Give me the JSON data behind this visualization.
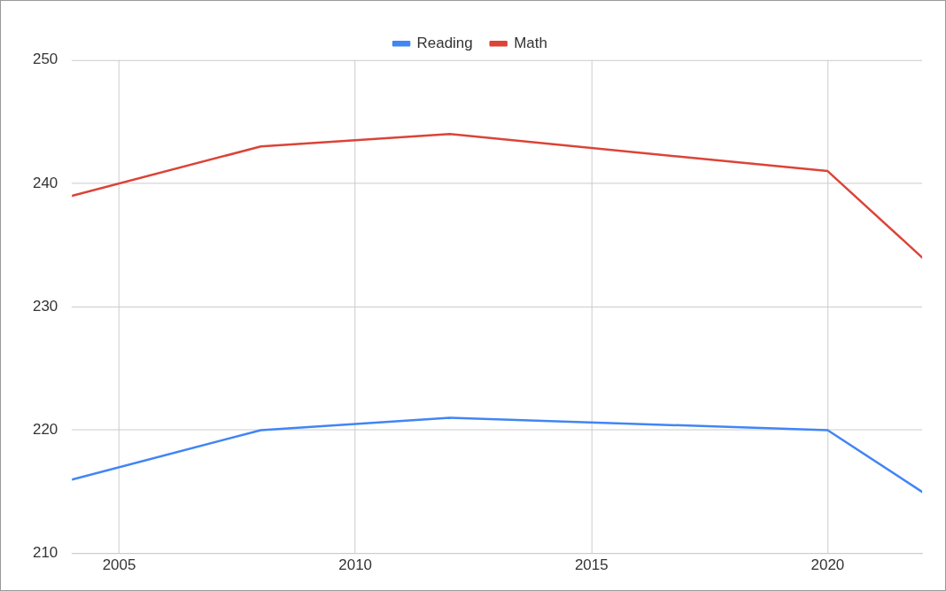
{
  "chart_data": {
    "type": "line",
    "x": [
      2004,
      2008,
      2012,
      2020,
      2022
    ],
    "series": [
      {
        "name": "Reading",
        "color": "#4285f4",
        "values": [
          216,
          220,
          221,
          220,
          215
        ]
      },
      {
        "name": "Math",
        "color": "#db4437",
        "values": [
          239,
          243,
          244,
          241,
          234
        ]
      }
    ],
    "xlim": [
      2004,
      2022
    ],
    "xticks": [
      2005,
      2010,
      2015,
      2020
    ],
    "ylim": [
      210,
      250
    ],
    "yticks": [
      210,
      220,
      230,
      240,
      250
    ],
    "grid": true,
    "legend": "top",
    "marker": "none",
    "line_style": "solid"
  }
}
